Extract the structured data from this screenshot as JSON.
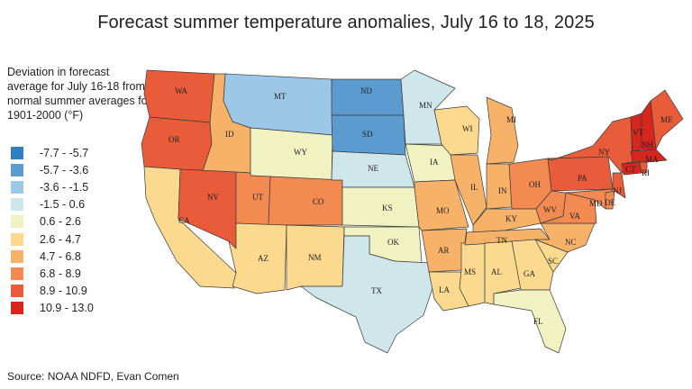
{
  "title": "Forecast summer temperature anomalies, July 16 to 18, 2025",
  "legend": {
    "title": "Deviation in forecast average for July 16-18 from normal summer averages for 1901-2000 (°F)",
    "bins": [
      {
        "label": "-7.7 - -5.7",
        "color": "#2f7fc1"
      },
      {
        "label": "-5.7 - -3.6",
        "color": "#5b9bd0"
      },
      {
        "label": "-3.6 - -1.5",
        "color": "#9cc7e6"
      },
      {
        "label": "-1.5 - 0.6",
        "color": "#cfe6ea"
      },
      {
        "label": "0.6 - 2.6",
        "color": "#f0f2c2"
      },
      {
        "label": "2.6 - 4.7",
        "color": "#fbd98e"
      },
      {
        "label": "4.7 - 6.8",
        "color": "#f7b26a"
      },
      {
        "label": "6.8 - 8.9",
        "color": "#f28a52"
      },
      {
        "label": "8.9 - 10.9",
        "color": "#e85c3a"
      },
      {
        "label": "10.9 - 13.0",
        "color": "#d7261e"
      }
    ]
  },
  "states": [
    {
      "abbr": "WA",
      "bin": 8
    },
    {
      "abbr": "OR",
      "bin": 8
    },
    {
      "abbr": "CA",
      "bin": 5
    },
    {
      "abbr": "ID",
      "bin": 6
    },
    {
      "abbr": "NV",
      "bin": 8
    },
    {
      "abbr": "MT",
      "bin": 2
    },
    {
      "abbr": "WY",
      "bin": 4
    },
    {
      "abbr": "UT",
      "bin": 7
    },
    {
      "abbr": "AZ",
      "bin": 5
    },
    {
      "abbr": "CO",
      "bin": 7
    },
    {
      "abbr": "NM",
      "bin": 5
    },
    {
      "abbr": "ND",
      "bin": 1
    },
    {
      "abbr": "SD",
      "bin": 1
    },
    {
      "abbr": "NE",
      "bin": 3
    },
    {
      "abbr": "KS",
      "bin": 4
    },
    {
      "abbr": "OK",
      "bin": 4
    },
    {
      "abbr": "TX",
      "bin": 3
    },
    {
      "abbr": "MN",
      "bin": 3
    },
    {
      "abbr": "IA",
      "bin": 4
    },
    {
      "abbr": "MO",
      "bin": 6
    },
    {
      "abbr": "AR",
      "bin": 6
    },
    {
      "abbr": "LA",
      "bin": 5
    },
    {
      "abbr": "WI",
      "bin": 5
    },
    {
      "abbr": "IL",
      "bin": 6
    },
    {
      "abbr": "MS",
      "bin": 5
    },
    {
      "abbr": "MI",
      "bin": 6
    },
    {
      "abbr": "IN",
      "bin": 6
    },
    {
      "abbr": "KY",
      "bin": 6
    },
    {
      "abbr": "TN",
      "bin": 6
    },
    {
      "abbr": "AL",
      "bin": 5
    },
    {
      "abbr": "OH",
      "bin": 7
    },
    {
      "abbr": "GA",
      "bin": 5
    },
    {
      "abbr": "FL",
      "bin": 4
    },
    {
      "abbr": "WV",
      "bin": 7
    },
    {
      "abbr": "VA",
      "bin": 7
    },
    {
      "abbr": "NC",
      "bin": 6
    },
    {
      "abbr": "SC",
      "bin": 5
    },
    {
      "abbr": "PA",
      "bin": 8
    },
    {
      "abbr": "NY",
      "bin": 8
    },
    {
      "abbr": "MD",
      "bin": 7
    },
    {
      "abbr": "DE",
      "bin": 7
    },
    {
      "abbr": "NJ",
      "bin": 8
    },
    {
      "abbr": "CT",
      "bin": 9
    },
    {
      "abbr": "RI",
      "bin": 8
    },
    {
      "abbr": "MA",
      "bin": 9
    },
    {
      "abbr": "VT",
      "bin": 9
    },
    {
      "abbr": "NH",
      "bin": 9
    },
    {
      "abbr": "ME",
      "bin": 8
    }
  ],
  "source": "Source: NOAA NDFD, Evan Comen"
}
